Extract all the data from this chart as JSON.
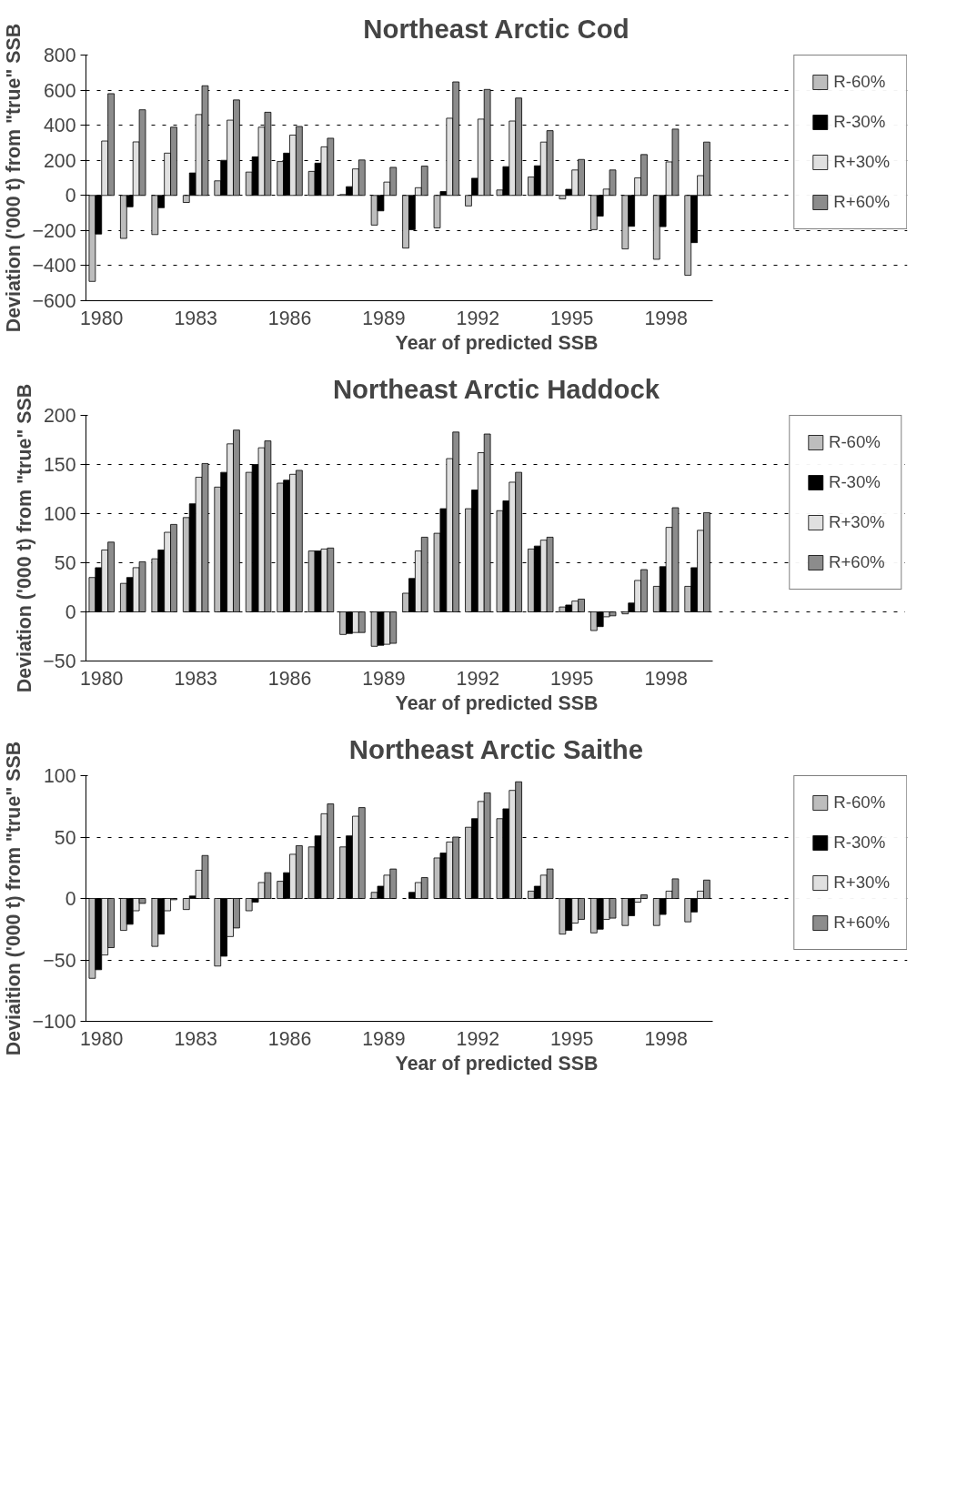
{
  "chart_data": [
    {
      "type": "bar",
      "title": "Northeast Arctic Cod",
      "xlabel": "Year of predicted SSB",
      "ylabel": "Deviation ('000 t) from \"true\" SSB",
      "categories": [
        "1980",
        null,
        null,
        "1983",
        null,
        null,
        "1986",
        null,
        null,
        "1989",
        null,
        null,
        "1992",
        null,
        null,
        "1995",
        null,
        null,
        "1998",
        null
      ],
      "ylim": [
        -600,
        800
      ],
      "yticks": [
        -600,
        -400,
        -200,
        0,
        200,
        400,
        600,
        800
      ],
      "grid": "y",
      "legend": "right",
      "series": [
        {
          "name": "R-60%",
          "color": "#bdbdbd",
          "values": [
            -490,
            -245,
            -223,
            -40,
            83,
            133,
            193,
            137,
            5,
            -169,
            -300,
            -185,
            -60,
            31,
            105,
            -20,
            -195,
            -305,
            -364,
            -455
          ]
        },
        {
          "name": "R-30%",
          "color": "#000000",
          "values": [
            -220,
            -65,
            -70,
            128,
            200,
            220,
            241,
            184,
            50,
            -88,
            -195,
            22,
            98,
            164,
            169,
            35,
            -118,
            -176,
            -178,
            -269
          ]
        },
        {
          "name": "R+30%",
          "color": "#e0e0e0",
          "values": [
            310,
            305,
            241,
            461,
            429,
            389,
            344,
            277,
            151,
            76,
            44,
            440,
            435,
            424,
            304,
            145,
            36,
            100,
            191,
            113
          ]
        },
        {
          "name": "R+60%",
          "color": "#8c8c8c",
          "values": [
            580,
            488,
            389,
            625,
            544,
            474,
            393,
            326,
            202,
            160,
            167,
            647,
            604,
            555,
            369,
            205,
            145,
            233,
            378,
            304
          ]
        }
      ]
    },
    {
      "type": "bar",
      "title": "Northeast Arctic Haddock",
      "xlabel": "Year of predicted SSB",
      "ylabel": "Deviation ('000 t) from \"true\" SSB",
      "categories": [
        "1980",
        null,
        null,
        "1983",
        null,
        null,
        "1986",
        null,
        null,
        "1989",
        null,
        null,
        "1992",
        null,
        null,
        "1995",
        null,
        null,
        "1998",
        null
      ],
      "ylim": [
        -50,
        200
      ],
      "yticks": [
        -50,
        0,
        50,
        100,
        150,
        200
      ],
      "grid": "y",
      "legend": "right",
      "series": [
        {
          "name": "R-60%",
          "color": "#bdbdbd",
          "values": [
            35,
            29,
            54,
            96,
            127,
            142,
            131,
            62,
            -23,
            -35,
            19,
            80,
            105,
            103,
            64,
            5,
            -19,
            -2,
            26,
            26
          ]
        },
        {
          "name": "R-30%",
          "color": "#000000",
          "values": [
            45,
            35,
            63,
            110,
            142,
            150,
            134,
            62,
            -22,
            -34,
            34,
            105,
            124,
            113,
            67,
            7,
            -15,
            9,
            46,
            45
          ]
        },
        {
          "name": "R+30%",
          "color": "#e0e0e0",
          "values": [
            63,
            45,
            81,
            137,
            171,
            167,
            140,
            64,
            -21,
            -33,
            62,
            156,
            162,
            132,
            73,
            11,
            -5,
            32,
            86,
            83
          ]
        },
        {
          "name": "R+60%",
          "color": "#8c8c8c",
          "values": [
            71,
            51,
            89,
            151,
            185,
            174,
            144,
            65,
            -21,
            -32,
            76,
            183,
            181,
            142,
            76,
            13,
            -4,
            43,
            106,
            101
          ]
        }
      ]
    },
    {
      "type": "bar",
      "title": "Northeast Arctic Saithe",
      "xlabel": "Year of predicted SSB",
      "ylabel": "Deviaition ('000 t) from \"true\" SSB",
      "categories": [
        "1980",
        null,
        null,
        "1983",
        null,
        null,
        "1986",
        null,
        null,
        "1989",
        null,
        null,
        "1992",
        null,
        null,
        "1995",
        null,
        null,
        "1998",
        null
      ],
      "ylim": [
        -100,
        100
      ],
      "yticks": [
        -100,
        -50,
        0,
        50,
        100
      ],
      "grid": "y",
      "legend": "right",
      "series": [
        {
          "name": "R-60%",
          "color": "#bdbdbd",
          "values": [
            -65,
            -26,
            -39,
            -9,
            -55,
            -10,
            14,
            42,
            42,
            5,
            null,
            33,
            58,
            65,
            6,
            -29,
            -28,
            -22,
            -22,
            -19
          ]
        },
        {
          "name": "R-30%",
          "color": "#000000",
          "values": [
            -58,
            -21,
            -29,
            2,
            -47,
            -3,
            21,
            51,
            51,
            10,
            5,
            37,
            65,
            73,
            10,
            -26,
            -25,
            -14,
            -13,
            -11
          ]
        },
        {
          "name": "R+30%",
          "color": "#e0e0e0",
          "values": [
            -46,
            -10,
            -10,
            23,
            -31,
            13,
            36,
            69,
            67,
            19,
            13,
            46,
            79,
            88,
            19,
            -20,
            -17,
            -3,
            6,
            6
          ]
        },
        {
          "name": "R+60%",
          "color": "#8c8c8c",
          "values": [
            -40,
            -4,
            -1,
            35,
            -24,
            21,
            43,
            77,
            74,
            24,
            17,
            50,
            86,
            95,
            24,
            -17,
            -16,
            3,
            16,
            15
          ]
        }
      ]
    }
  ]
}
